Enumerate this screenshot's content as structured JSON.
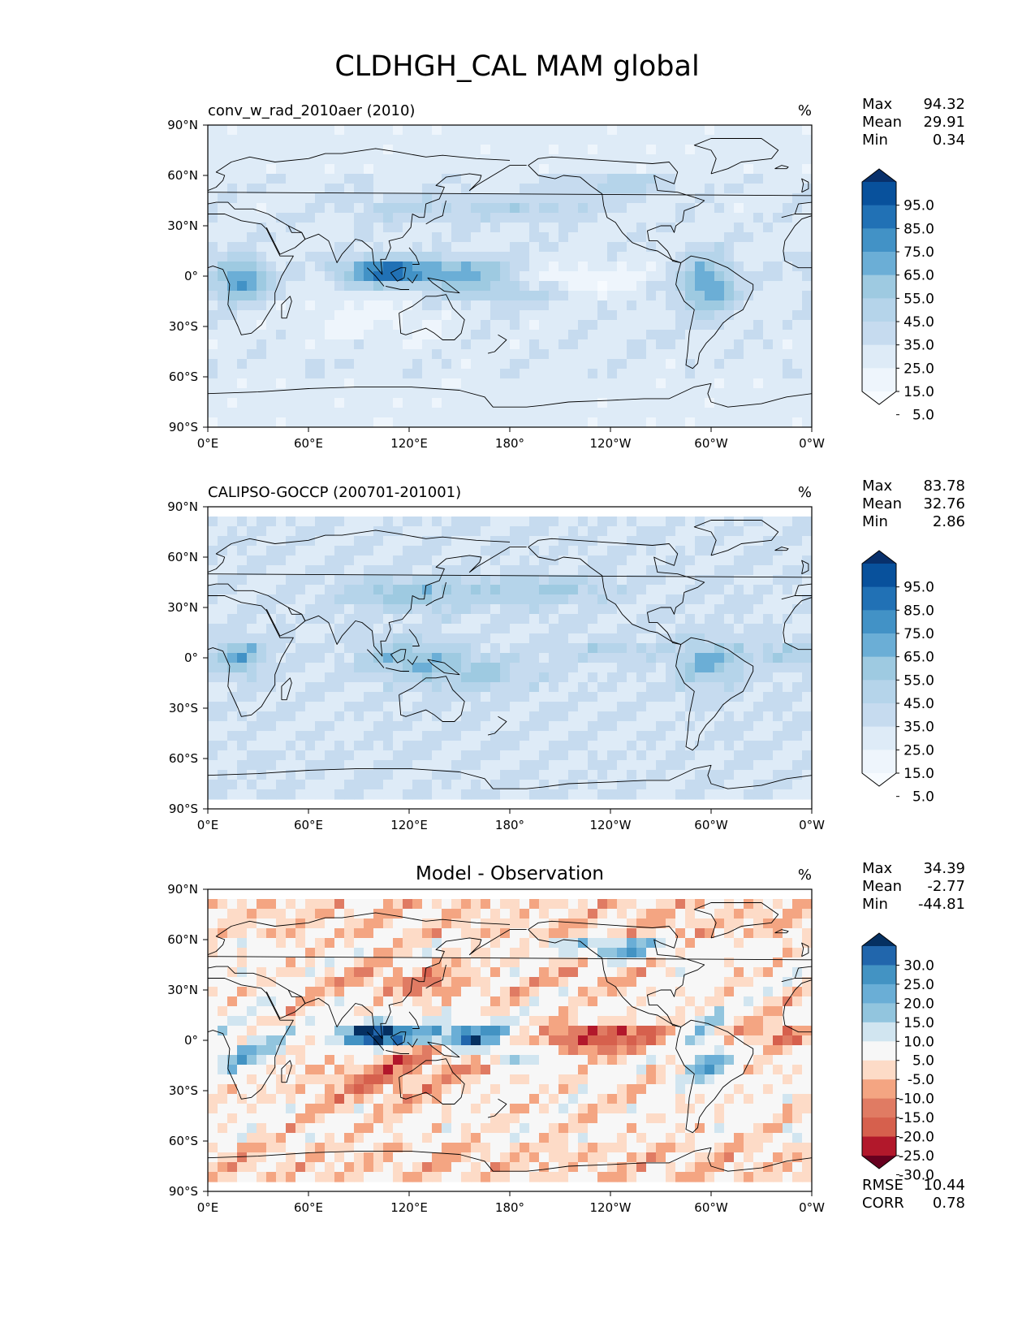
{
  "figure": {
    "title": "CLDHGH_CAL MAM global"
  },
  "panels": [
    {
      "id": "model",
      "title": "conv_w_rad_2010aer (2010)",
      "title_centered": false,
      "units": "%",
      "stats": [
        {
          "label": "Max",
          "value": "94.32"
        },
        {
          "label": "Mean",
          "value": "29.91"
        },
        {
          "label": "Min",
          "value": "0.34"
        }
      ],
      "colormap": "Blues",
      "colorbar_labels": [
        "95.0",
        "85.0",
        "75.0",
        "65.0",
        "55.0",
        "45.0",
        "35.0",
        "25.0",
        "15.0",
        "5.0"
      ],
      "colors": [
        "#08306b",
        "#08519c",
        "#2171b5",
        "#4292c6",
        "#6baed6",
        "#9ecae1",
        "#b5d4ea",
        "#c6dbef",
        "#deebf7",
        "#eef5fc",
        "#f7fbff"
      ],
      "extra_stats": []
    },
    {
      "id": "obs",
      "title": "CALIPSO-GOCCP (200701-201001)",
      "title_centered": false,
      "units": "%",
      "stats": [
        {
          "label": "Max",
          "value": "83.78"
        },
        {
          "label": "Mean",
          "value": "32.76"
        },
        {
          "label": "Min",
          "value": "2.86"
        }
      ],
      "colormap": "Blues",
      "colorbar_labels": [
        "95.0",
        "85.0",
        "75.0",
        "65.0",
        "55.0",
        "45.0",
        "35.0",
        "25.0",
        "15.0",
        "5.0"
      ],
      "colors": [
        "#08306b",
        "#08519c",
        "#2171b5",
        "#4292c6",
        "#6baed6",
        "#9ecae1",
        "#b5d4ea",
        "#c6dbef",
        "#deebf7",
        "#eef5fc",
        "#f7fbff"
      ],
      "extra_stats": []
    },
    {
      "id": "diff",
      "title": "Model - Observation",
      "title_centered": true,
      "units": "%",
      "stats": [
        {
          "label": "Max",
          "value": "34.39"
        },
        {
          "label": "Mean",
          "value": "-2.77"
        },
        {
          "label": "Min",
          "value": "-44.81"
        }
      ],
      "colormap": "RdBu_r",
      "colorbar_labels": [
        "30.0",
        "25.0",
        "20.0",
        "15.0",
        "10.0",
        "5.0",
        "-5.0",
        "-10.0",
        "-15.0",
        "-20.0",
        "-25.0",
        "-30.0"
      ],
      "colors": [
        "#053061",
        "#2166ac",
        "#4393c3",
        "#6aaed6",
        "#92c5de",
        "#d1e5f0",
        "#f7f7f7",
        "#fddbc7",
        "#f4a582",
        "#e07b63",
        "#d6604d",
        "#b2182b",
        "#67001f"
      ],
      "extra_stats": [
        {
          "label": "RMSE",
          "value": "10.44"
        },
        {
          "label": "CORR",
          "value": "0.78"
        }
      ]
    }
  ],
  "chart_data": [
    {
      "type": "heatmap",
      "title": "conv_w_rad_2010aer (2010)",
      "variable": "CLDHGH_CAL",
      "units": "%",
      "x_tick_labels": [
        "0°E",
        "60°E",
        "120°E",
        "180°",
        "120°W",
        "60°W",
        "0°W"
      ],
      "y_tick_labels": [
        "90°N",
        "60°N",
        "30°N",
        "0°",
        "30°S",
        "60°S",
        "90°S"
      ],
      "xlim": [
        0,
        360
      ],
      "ylim": [
        -90,
        90
      ],
      "levels": [
        5,
        15,
        25,
        35,
        45,
        55,
        65,
        75,
        85,
        95
      ],
      "max": 94.32,
      "mean": 29.91,
      "min": 0.34
    },
    {
      "type": "heatmap",
      "title": "CALIPSO-GOCCP (200701-201001)",
      "variable": "CLDHGH_CAL",
      "units": "%",
      "x_tick_labels": [
        "0°E",
        "60°E",
        "120°E",
        "180°",
        "120°W",
        "60°W",
        "0°W"
      ],
      "y_tick_labels": [
        "90°N",
        "60°N",
        "30°N",
        "0°",
        "30°S",
        "60°S",
        "90°S"
      ],
      "xlim": [
        0,
        360
      ],
      "ylim": [
        -90,
        90
      ],
      "levels": [
        5,
        15,
        25,
        35,
        45,
        55,
        65,
        75,
        85,
        95
      ],
      "max": 83.78,
      "mean": 32.76,
      "min": 2.86
    },
    {
      "type": "heatmap",
      "title": "Model - Observation",
      "variable": "CLDHGH_CAL",
      "units": "%",
      "x_tick_labels": [
        "0°E",
        "60°E",
        "120°E",
        "180°",
        "120°W",
        "60°W",
        "0°W"
      ],
      "y_tick_labels": [
        "90°N",
        "60°N",
        "30°N",
        "0°",
        "30°S",
        "60°S",
        "90°S"
      ],
      "xlim": [
        0,
        360
      ],
      "ylim": [
        -90,
        90
      ],
      "levels": [
        -30,
        -25,
        -20,
        -15,
        -10,
        -5,
        5,
        10,
        15,
        20,
        25,
        30
      ],
      "max": 34.39,
      "mean": -2.77,
      "min": -44.81,
      "rmse": 10.44,
      "corr": 0.78
    }
  ]
}
